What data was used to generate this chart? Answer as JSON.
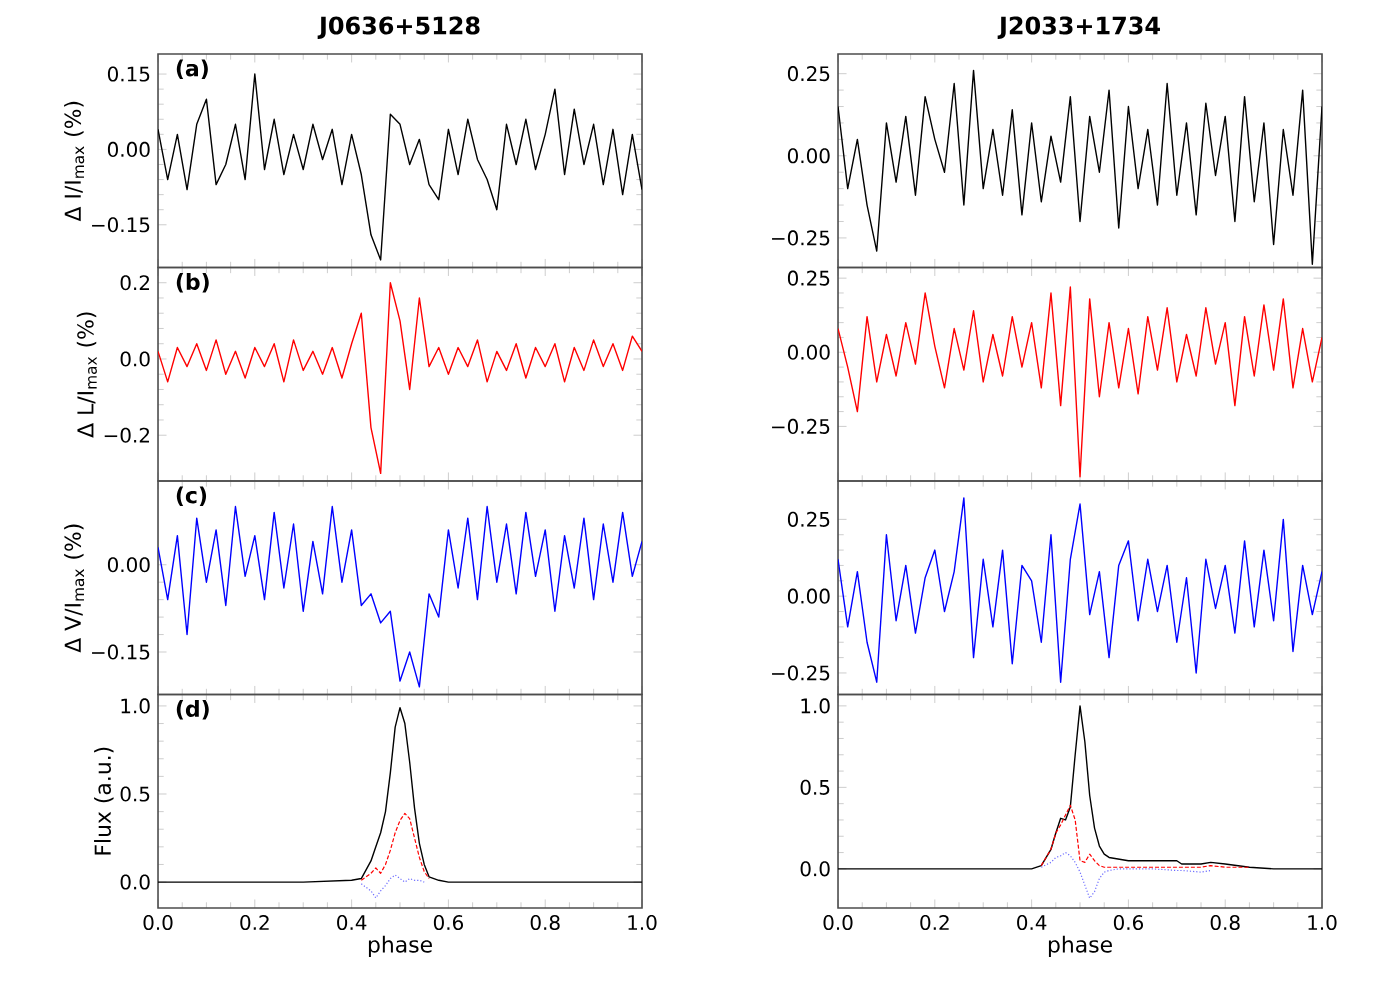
{
  "chart_data": [
    {
      "type": "line",
      "title": "J0636+5128",
      "ylabel": "Δ I/I$_{max}$ (%)",
      "annotations": [
        "(a)"
      ],
      "tick_labels": "y",
      "x": [
        0,
        0.02,
        0.04,
        0.06,
        0.08,
        0.1,
        0.12,
        0.14,
        0.16,
        0.18,
        0.2,
        0.22,
        0.24,
        0.26,
        0.28,
        0.3,
        0.32,
        0.34,
        0.36,
        0.38,
        0.4,
        0.42,
        0.44,
        0.46,
        0.48,
        0.5,
        0.52,
        0.54,
        0.56,
        0.58,
        0.6,
        0.62,
        0.64,
        0.66,
        0.68,
        0.7,
        0.72,
        0.74,
        0.76,
        0.78,
        0.8,
        0.82,
        0.84,
        0.86,
        0.88,
        0.9,
        0.92,
        0.94,
        0.96,
        0.98,
        1.0
      ],
      "series": [
        {
          "color": "#000000",
          "line_style": "solid",
          "values": [
            0.04,
            -0.06,
            0.03,
            -0.08,
            0.05,
            0.1,
            -0.07,
            -0.03,
            0.05,
            -0.06,
            0.15,
            -0.04,
            0.06,
            -0.05,
            0.03,
            -0.04,
            0.05,
            -0.02,
            0.04,
            -0.07,
            0.03,
            -0.05,
            -0.17,
            -0.22,
            0.07,
            0.05,
            -0.03,
            0.02,
            -0.07,
            -0.1,
            0.04,
            -0.05,
            0.06,
            -0.02,
            -0.06,
            -0.12,
            0.05,
            -0.03,
            0.06,
            -0.04,
            0.03,
            0.12,
            -0.05,
            0.08,
            -0.03,
            0.05,
            -0.07,
            0.04,
            -0.09,
            0.03,
            -0.08
          ]
        }
      ],
      "xlim": [
        0,
        1
      ],
      "ylim": [
        -0.235,
        0.19
      ],
      "xticks": [
        {
          "value": 0,
          "label": null
        },
        {
          "value": 0.2,
          "label": null
        },
        {
          "value": 0.4,
          "label": null
        },
        {
          "value": 0.6,
          "label": null
        },
        {
          "value": 0.8,
          "label": null
        },
        {
          "value": 1.0,
          "label": null
        }
      ],
      "yticks": [
        {
          "value": -0.15,
          "label": "−0.15"
        },
        {
          "value": 0,
          "label": "0.00"
        },
        {
          "value": 0.15,
          "label": "0.15"
        }
      ]
    },
    {
      "type": "line",
      "title": "J2033+1734",
      "tick_labels": "y",
      "x": [
        0,
        0.02,
        0.04,
        0.06,
        0.08,
        0.1,
        0.12,
        0.14,
        0.16,
        0.18,
        0.2,
        0.22,
        0.24,
        0.26,
        0.28,
        0.3,
        0.32,
        0.34,
        0.36,
        0.38,
        0.4,
        0.42,
        0.44,
        0.46,
        0.48,
        0.5,
        0.52,
        0.54,
        0.56,
        0.58,
        0.6,
        0.62,
        0.64,
        0.66,
        0.68,
        0.7,
        0.72,
        0.74,
        0.76,
        0.78,
        0.8,
        0.82,
        0.84,
        0.86,
        0.88,
        0.9,
        0.92,
        0.94,
        0.96,
        0.98,
        1.0
      ],
      "series": [
        {
          "color": "#000000",
          "line_style": "solid",
          "values": [
            0.15,
            -0.1,
            0.05,
            -0.15,
            -0.29,
            0.1,
            -0.08,
            0.12,
            -0.12,
            0.18,
            0.05,
            -0.05,
            0.22,
            -0.15,
            0.26,
            -0.1,
            0.08,
            -0.12,
            0.14,
            -0.18,
            0.1,
            -0.14,
            0.06,
            -0.08,
            0.18,
            -0.2,
            0.12,
            -0.05,
            0.2,
            -0.22,
            0.15,
            -0.1,
            0.08,
            -0.15,
            0.22,
            -0.12,
            0.1,
            -0.18,
            0.16,
            -0.06,
            0.12,
            -0.2,
            0.18,
            -0.14,
            0.1,
            -0.27,
            0.08,
            -0.12,
            0.2,
            -0.33,
            0.15
          ]
        }
      ],
      "xlim": [
        0,
        1
      ],
      "ylim": [
        -0.34,
        0.31
      ],
      "xticks": [
        {
          "value": 0,
          "label": null
        },
        {
          "value": 0.2,
          "label": null
        },
        {
          "value": 0.4,
          "label": null
        },
        {
          "value": 0.6,
          "label": null
        },
        {
          "value": 0.8,
          "label": null
        },
        {
          "value": 1.0,
          "label": null
        }
      ],
      "yticks": [
        {
          "value": -0.25,
          "label": "−0.25"
        },
        {
          "value": 0,
          "label": "0.00"
        },
        {
          "value": 0.25,
          "label": "0.25"
        }
      ]
    },
    {
      "type": "line",
      "ylabel": "Δ L/I$_{max}$ (%)",
      "annotations": [
        "(b)"
      ],
      "tick_labels": "y",
      "x": [
        0,
        0.02,
        0.04,
        0.06,
        0.08,
        0.1,
        0.12,
        0.14,
        0.16,
        0.18,
        0.2,
        0.22,
        0.24,
        0.26,
        0.28,
        0.3,
        0.32,
        0.34,
        0.36,
        0.38,
        0.4,
        0.42,
        0.44,
        0.46,
        0.48,
        0.5,
        0.52,
        0.54,
        0.56,
        0.58,
        0.6,
        0.62,
        0.64,
        0.66,
        0.68,
        0.7,
        0.72,
        0.74,
        0.76,
        0.78,
        0.8,
        0.82,
        0.84,
        0.86,
        0.88,
        0.9,
        0.92,
        0.94,
        0.96,
        0.98,
        1.0
      ],
      "series": [
        {
          "color": "#ff0000",
          "line_style": "solid",
          "values": [
            0.02,
            -0.06,
            0.03,
            -0.02,
            0.04,
            -0.03,
            0.05,
            -0.04,
            0.02,
            -0.05,
            0.03,
            -0.02,
            0.04,
            -0.06,
            0.05,
            -0.03,
            0.02,
            -0.04,
            0.03,
            -0.05,
            0.04,
            0.12,
            -0.18,
            -0.3,
            0.2,
            0.1,
            -0.08,
            0.16,
            -0.02,
            0.03,
            -0.04,
            0.03,
            -0.02,
            0.05,
            -0.06,
            0.02,
            -0.03,
            0.04,
            -0.05,
            0.03,
            -0.02,
            0.04,
            -0.06,
            0.03,
            -0.03,
            0.05,
            -0.02,
            0.04,
            -0.03,
            0.06,
            0.02
          ]
        }
      ],
      "xlim": [
        0,
        1
      ],
      "ylim": [
        -0.32,
        0.24
      ],
      "xticks": [
        {
          "value": 0,
          "label": null
        },
        {
          "value": 0.2,
          "label": null
        },
        {
          "value": 0.4,
          "label": null
        },
        {
          "value": 0.6,
          "label": null
        },
        {
          "value": 0.8,
          "label": null
        },
        {
          "value": 1.0,
          "label": null
        }
      ],
      "yticks": [
        {
          "value": -0.2,
          "label": "−0.2"
        },
        {
          "value": 0,
          "label": "0.0"
        },
        {
          "value": 0.2,
          "label": "0.2"
        }
      ]
    },
    {
      "type": "line",
      "tick_labels": "y",
      "x": [
        0,
        0.02,
        0.04,
        0.06,
        0.08,
        0.1,
        0.12,
        0.14,
        0.16,
        0.18,
        0.2,
        0.22,
        0.24,
        0.26,
        0.28,
        0.3,
        0.32,
        0.34,
        0.36,
        0.38,
        0.4,
        0.42,
        0.44,
        0.46,
        0.48,
        0.5,
        0.52,
        0.54,
        0.56,
        0.58,
        0.6,
        0.62,
        0.64,
        0.66,
        0.68,
        0.7,
        0.72,
        0.74,
        0.76,
        0.78,
        0.8,
        0.82,
        0.84,
        0.86,
        0.88,
        0.9,
        0.92,
        0.94,
        0.96,
        0.98,
        1.0
      ],
      "series": [
        {
          "color": "#ff0000",
          "line_style": "solid",
          "values": [
            0.08,
            -0.05,
            -0.2,
            0.12,
            -0.1,
            0.06,
            -0.08,
            0.1,
            -0.04,
            0.2,
            0.02,
            -0.12,
            0.08,
            -0.06,
            0.14,
            -0.1,
            0.06,
            -0.08,
            0.12,
            -0.05,
            0.1,
            -0.12,
            0.2,
            -0.18,
            0.22,
            -0.42,
            0.18,
            -0.15,
            0.1,
            -0.12,
            0.08,
            -0.14,
            0.12,
            -0.06,
            0.15,
            -0.1,
            0.06,
            -0.08,
            0.15,
            -0.04,
            0.1,
            -0.18,
            0.12,
            -0.08,
            0.16,
            -0.06,
            0.18,
            -0.12,
            0.08,
            -0.1,
            0.05
          ]
        }
      ],
      "xlim": [
        0,
        1
      ],
      "ylim": [
        -0.434,
        0.286
      ],
      "xticks": [
        {
          "value": 0,
          "label": null
        },
        {
          "value": 0.2,
          "label": null
        },
        {
          "value": 0.4,
          "label": null
        },
        {
          "value": 0.6,
          "label": null
        },
        {
          "value": 0.8,
          "label": null
        },
        {
          "value": 1.0,
          "label": null
        }
      ],
      "yticks": [
        {
          "value": -0.25,
          "label": "−0.25"
        },
        {
          "value": 0,
          "label": "0.00"
        },
        {
          "value": 0.25,
          "label": "0.25"
        }
      ]
    },
    {
      "type": "line",
      "ylabel": "Δ V/I$_{max}$ (%)",
      "annotations": [
        "(c)"
      ],
      "tick_labels": "y",
      "x": [
        0,
        0.02,
        0.04,
        0.06,
        0.08,
        0.1,
        0.12,
        0.14,
        0.16,
        0.18,
        0.2,
        0.22,
        0.24,
        0.26,
        0.28,
        0.3,
        0.32,
        0.34,
        0.36,
        0.38,
        0.4,
        0.42,
        0.44,
        0.46,
        0.48,
        0.5,
        0.52,
        0.54,
        0.56,
        0.58,
        0.6,
        0.62,
        0.64,
        0.66,
        0.68,
        0.7,
        0.72,
        0.74,
        0.76,
        0.78,
        0.8,
        0.82,
        0.84,
        0.86,
        0.88,
        0.9,
        0.92,
        0.94,
        0.96,
        0.98,
        1.0
      ],
      "series": [
        {
          "color": "#0000ff",
          "line_style": "solid",
          "values": [
            0.03,
            -0.06,
            0.05,
            -0.12,
            0.08,
            -0.03,
            0.06,
            -0.07,
            0.1,
            -0.02,
            0.05,
            -0.06,
            0.09,
            -0.04,
            0.07,
            -0.08,
            0.04,
            -0.05,
            0.1,
            -0.03,
            0.06,
            -0.07,
            -0.05,
            -0.1,
            -0.08,
            -0.2,
            -0.15,
            -0.21,
            -0.05,
            -0.09,
            0.06,
            -0.04,
            0.08,
            -0.06,
            0.1,
            -0.03,
            0.07,
            -0.05,
            0.09,
            -0.02,
            0.06,
            -0.08,
            0.05,
            -0.04,
            0.08,
            -0.06,
            0.07,
            -0.03,
            0.09,
            -0.02,
            0.04
          ]
        }
      ],
      "xlim": [
        0,
        1
      ],
      "ylim": [
        -0.223,
        0.144
      ],
      "xticks": [
        {
          "value": 0,
          "label": null
        },
        {
          "value": 0.2,
          "label": null
        },
        {
          "value": 0.4,
          "label": null
        },
        {
          "value": 0.6,
          "label": null
        },
        {
          "value": 0.8,
          "label": null
        },
        {
          "value": 1.0,
          "label": null
        }
      ],
      "yticks": [
        {
          "value": -0.15,
          "label": "−0.15"
        },
        {
          "value": 0,
          "label": "0.00"
        }
      ]
    },
    {
      "type": "line",
      "tick_labels": "y",
      "x": [
        0,
        0.02,
        0.04,
        0.06,
        0.08,
        0.1,
        0.12,
        0.14,
        0.16,
        0.18,
        0.2,
        0.22,
        0.24,
        0.26,
        0.28,
        0.3,
        0.32,
        0.34,
        0.36,
        0.38,
        0.4,
        0.42,
        0.44,
        0.46,
        0.48,
        0.5,
        0.52,
        0.54,
        0.56,
        0.58,
        0.6,
        0.62,
        0.64,
        0.66,
        0.68,
        0.7,
        0.72,
        0.74,
        0.76,
        0.78,
        0.8,
        0.82,
        0.84,
        0.86,
        0.88,
        0.9,
        0.92,
        0.94,
        0.96,
        0.98,
        1.0
      ],
      "series": [
        {
          "color": "#0000ff",
          "line_style": "solid",
          "values": [
            0.12,
            -0.1,
            0.08,
            -0.15,
            -0.28,
            0.2,
            -0.08,
            0.1,
            -0.12,
            0.06,
            0.15,
            -0.05,
            0.08,
            0.32,
            -0.2,
            0.12,
            -0.1,
            0.15,
            -0.22,
            0.1,
            0.05,
            -0.15,
            0.2,
            -0.28,
            0.12,
            0.3,
            -0.06,
            0.08,
            -0.2,
            0.1,
            0.18,
            -0.08,
            0.12,
            -0.05,
            0.1,
            -0.15,
            0.06,
            -0.25,
            0.12,
            -0.04,
            0.1,
            -0.12,
            0.18,
            -0.1,
            0.15,
            -0.08,
            0.25,
            -0.18,
            0.1,
            -0.06,
            0.08
          ]
        }
      ],
      "xlim": [
        0,
        1
      ],
      "ylim": [
        -0.32,
        0.375
      ],
      "xticks": [
        {
          "value": 0,
          "label": null
        },
        {
          "value": 0.2,
          "label": null
        },
        {
          "value": 0.4,
          "label": null
        },
        {
          "value": 0.6,
          "label": null
        },
        {
          "value": 0.8,
          "label": null
        },
        {
          "value": 1.0,
          "label": null
        }
      ],
      "yticks": [
        {
          "value": -0.25,
          "label": "−0.25"
        },
        {
          "value": 0,
          "label": "0.00"
        },
        {
          "value": 0.25,
          "label": "0.25"
        }
      ]
    },
    {
      "type": "line",
      "xlabel": "phase",
      "ylabel": "Flux (a.u.)",
      "annotations": [
        "(d)"
      ],
      "x": [
        0,
        0.1,
        0.2,
        0.3,
        0.4,
        0.42,
        0.44,
        0.45,
        0.46,
        0.47,
        0.48,
        0.49,
        0.5,
        0.51,
        0.52,
        0.53,
        0.54,
        0.55,
        0.56,
        0.58,
        0.6,
        0.7,
        0.8,
        0.9,
        1.0
      ],
      "series": [
        {
          "color": "#000000",
          "line_style": "solid",
          "values": [
            0,
            0,
            0,
            0,
            0.01,
            0.02,
            0.12,
            0.2,
            0.28,
            0.4,
            0.62,
            0.88,
            0.99,
            0.9,
            0.68,
            0.42,
            0.22,
            0.1,
            0.03,
            0.01,
            0,
            0,
            0,
            0,
            0
          ]
        },
        {
          "color": "#ff0000",
          "line_style": "dashed",
          "values": [
            null,
            null,
            null,
            null,
            null,
            0.01,
            0.05,
            0.08,
            0.05,
            0.1,
            0.18,
            0.28,
            0.35,
            0.39,
            0.36,
            0.25,
            0.14,
            0.06,
            0.02,
            null,
            null,
            null,
            null,
            null,
            null
          ]
        },
        {
          "color": "#6a6aff",
          "line_style": "dotted",
          "values": [
            null,
            null,
            null,
            null,
            null,
            -0.01,
            -0.05,
            -0.09,
            -0.05,
            -0.02,
            0.02,
            0.04,
            0.02,
            0,
            0.02,
            0.01,
            0.01,
            0,
            null,
            null,
            null,
            null,
            null,
            null,
            null
          ]
        }
      ],
      "xlim": [
        0,
        1
      ],
      "ylim": [
        -0.147,
        1.065
      ],
      "xticks": [
        {
          "value": 0,
          "label": "0.0"
        },
        {
          "value": 0.2,
          "label": "0.2"
        },
        {
          "value": 0.4,
          "label": "0.4"
        },
        {
          "value": 0.6,
          "label": "0.6"
        },
        {
          "value": 0.8,
          "label": "0.8"
        },
        {
          "value": 1.0,
          "label": "1.0"
        }
      ],
      "yticks": [
        {
          "value": 0,
          "label": "0.0"
        },
        {
          "value": 0.5,
          "label": "0.5"
        },
        {
          "value": 1.0,
          "label": "1.0"
        }
      ]
    },
    {
      "type": "line",
      "xlabel": "phase",
      "x": [
        0,
        0.1,
        0.2,
        0.3,
        0.4,
        0.42,
        0.44,
        0.45,
        0.46,
        0.47,
        0.48,
        0.49,
        0.5,
        0.51,
        0.52,
        0.53,
        0.54,
        0.55,
        0.56,
        0.58,
        0.6,
        0.65,
        0.7,
        0.71,
        0.75,
        0.77,
        0.8,
        0.85,
        0.9,
        1.0
      ],
      "series": [
        {
          "color": "#000000",
          "line_style": "solid",
          "values": [
            0,
            0,
            0,
            0,
            0,
            0.02,
            0.12,
            0.22,
            0.31,
            0.3,
            0.38,
            0.7,
            1.0,
            0.78,
            0.45,
            0.25,
            0.14,
            0.09,
            0.07,
            0.06,
            0.05,
            0.05,
            0.05,
            0.03,
            0.03,
            0.04,
            0.03,
            0.01,
            0,
            0
          ]
        },
        {
          "color": "#ff0000",
          "line_style": "dashed",
          "values": [
            null,
            null,
            null,
            null,
            null,
            0.02,
            0.12,
            0.22,
            0.27,
            0.33,
            0.39,
            0.3,
            0.05,
            0.04,
            0.09,
            0.05,
            0.02,
            0.01,
            0.01,
            0.01,
            0.01,
            0.01,
            0.01,
            0.01,
            0.01,
            0.02,
            0.01,
            0.01,
            null,
            null
          ]
        },
        {
          "color": "#6a6aff",
          "line_style": "dotted",
          "values": [
            null,
            null,
            null,
            null,
            null,
            0.01,
            0.04,
            0.07,
            0.08,
            0.1,
            0.08,
            0.04,
            -0.02,
            -0.1,
            -0.18,
            -0.14,
            -0.06,
            -0.02,
            -0.01,
            0,
            0,
            0,
            -0.01,
            -0.01,
            -0.02,
            -0.01,
            null,
            null,
            null,
            null
          ]
        }
      ],
      "xlim": [
        0,
        1
      ],
      "ylim": [
        -0.24,
        1.07
      ],
      "xticks": [
        {
          "value": 0,
          "label": "0.0"
        },
        {
          "value": 0.2,
          "label": "0.2"
        },
        {
          "value": 0.4,
          "label": "0.4"
        },
        {
          "value": 0.6,
          "label": "0.6"
        },
        {
          "value": 0.8,
          "label": "0.8"
        },
        {
          "value": 1.0,
          "label": "1.0"
        }
      ],
      "yticks": [
        {
          "value": 0,
          "label": "0.0"
        },
        {
          "value": 0.5,
          "label": "0.5"
        },
        {
          "value": 1.0,
          "label": "1.0"
        }
      ]
    }
  ]
}
